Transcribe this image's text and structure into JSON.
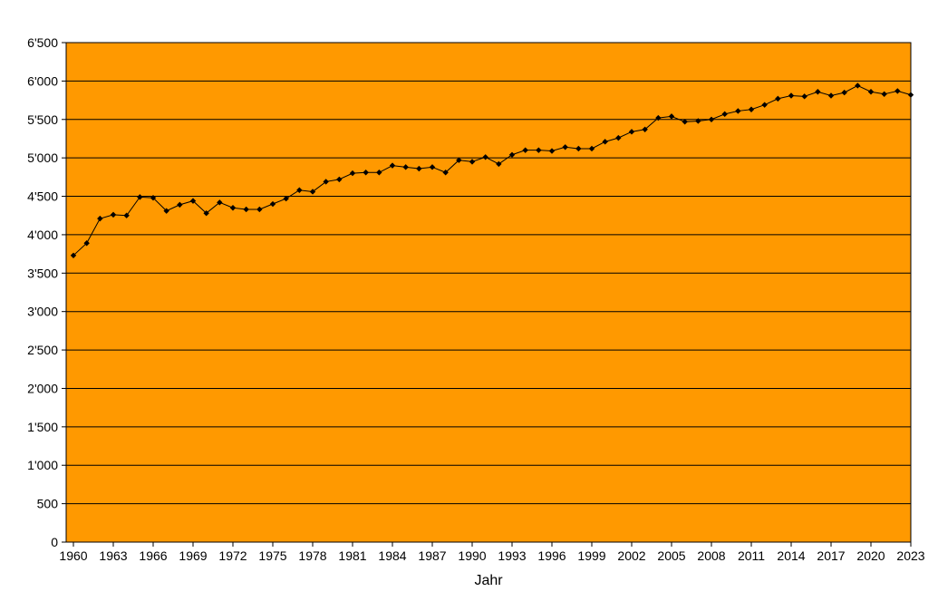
{
  "chart_data": {
    "type": "line",
    "title": "",
    "xlabel": "Jahr",
    "ylabel": "",
    "xlim": [
      1960,
      2023
    ],
    "ylim": [
      0,
      6500
    ],
    "y_ticks": [
      "0",
      "500",
      "1'000",
      "1'500",
      "2'000",
      "2'500",
      "3'000",
      "3'500",
      "4'000",
      "4'500",
      "5'000",
      "5'500",
      "6'000",
      "6'500"
    ],
    "x_ticks": [
      "1960",
      "1963",
      "1966",
      "1969",
      "1972",
      "1975",
      "1978",
      "1981",
      "1984",
      "1987",
      "1990",
      "1993",
      "1996",
      "1999",
      "2002",
      "2005",
      "2008",
      "2011",
      "2014",
      "2017",
      "2020",
      "2023"
    ],
    "grid": true,
    "legend": "none",
    "colors": {
      "plot_background": "#ff9900",
      "line": "#000000",
      "marker": "#000000",
      "gridline": "#000000"
    },
    "series": [
      {
        "x": [
          1960,
          1961,
          1962,
          1963,
          1964,
          1965,
          1966,
          1967,
          1968,
          1969,
          1970,
          1971,
          1972,
          1973,
          1974,
          1975,
          1976,
          1977,
          1978,
          1979,
          1980,
          1981,
          1982,
          1983,
          1984,
          1985,
          1986,
          1987,
          1988,
          1989,
          1990,
          1991,
          1992,
          1993,
          1994,
          1995,
          1996,
          1997,
          1998,
          1999,
          2000,
          2001,
          2002,
          2003,
          2004,
          2005,
          2006,
          2007,
          2008,
          2009,
          2010,
          2011,
          2012,
          2013,
          2014,
          2015,
          2016,
          2017,
          2018,
          2019,
          2020,
          2021,
          2022,
          2023
        ],
        "values": [
          3730,
          3890,
          4210,
          4260,
          4250,
          4490,
          4480,
          4310,
          4390,
          4440,
          4280,
          4420,
          4350,
          4330,
          4330,
          4400,
          4470,
          4580,
          4560,
          4690,
          4720,
          4800,
          4810,
          4810,
          4900,
          4880,
          4860,
          4880,
          4810,
          4970,
          4950,
          5010,
          4920,
          5040,
          5100,
          5100,
          5090,
          5140,
          5120,
          5120,
          5210,
          5260,
          5340,
          5370,
          5520,
          5540,
          5470,
          5480,
          5500,
          5570,
          5610,
          5630,
          5690,
          5770,
          5810,
          5800,
          5860,
          5810,
          5850,
          5940,
          5860,
          5830,
          5870,
          5820
        ]
      }
    ]
  }
}
